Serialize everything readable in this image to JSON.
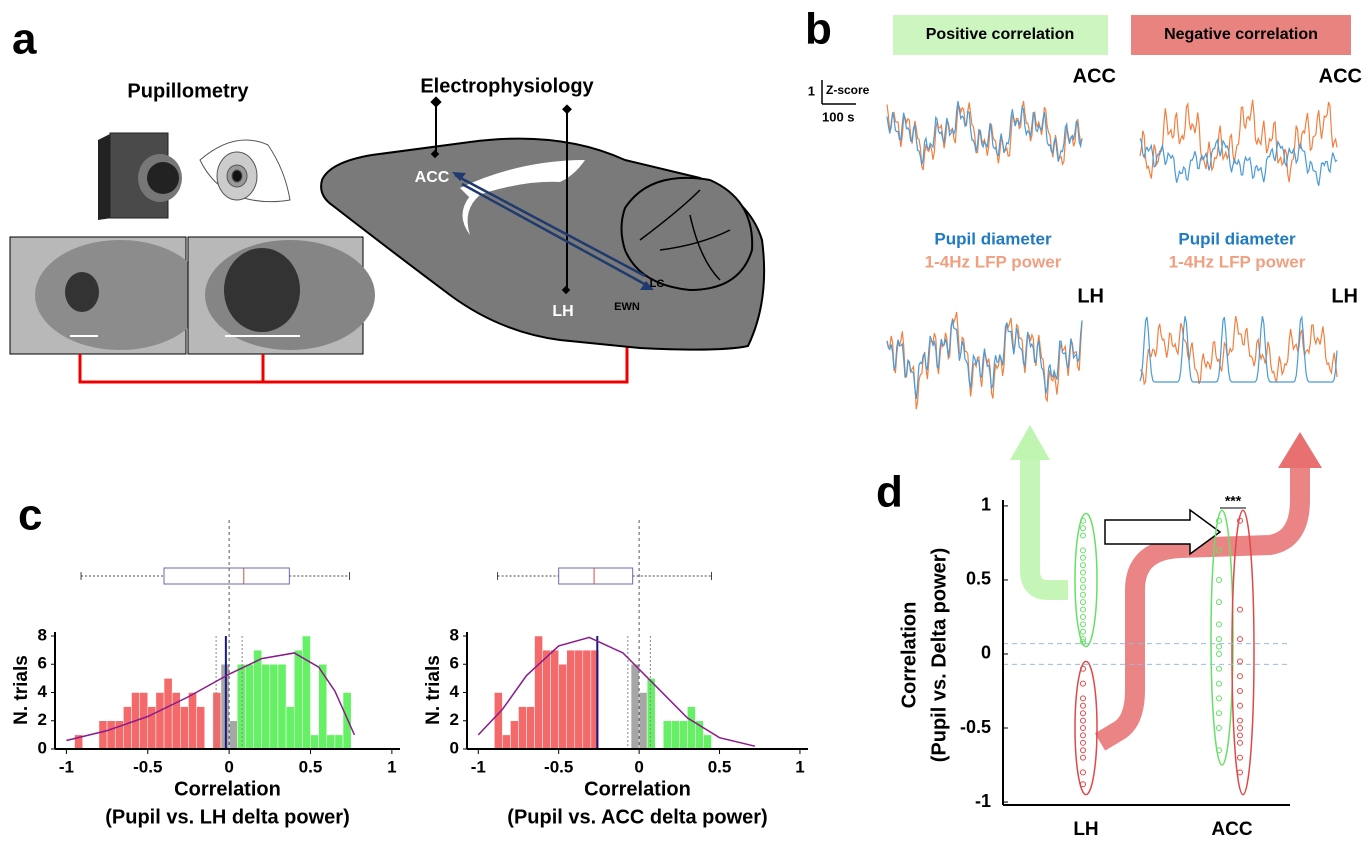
{
  "figure": {
    "panel_labels": [
      "a",
      "b",
      "c",
      "d"
    ],
    "a": {
      "pupillometry": "Pupillometry",
      "electrophysiology": "Electrophysiology",
      "regions": [
        "ACC",
        "LH",
        "LC",
        "EWN"
      ]
    },
    "b": {
      "positive": "Positive correlation",
      "negative": "Negative correlation",
      "scale_y": "1",
      "scale_y_unit": "Z-score",
      "scale_x": "100 s",
      "regions": [
        "ACC",
        "ACC",
        "LH",
        "LH"
      ],
      "legend": [
        "Pupil diameter",
        "1-4Hz LFP power",
        "Pupil diameter",
        "1-4Hz LFP power"
      ]
    }
  },
  "chart_data": [
    {
      "type": "histogram",
      "ylabel": "N. trials",
      "xlabel": "Correlation",
      "xlabel2": "(Pupil vs. LH delta power)",
      "xlim": [
        -1.07,
        1.05
      ],
      "ylim": [
        0,
        8
      ],
      "xticks": [
        -1,
        -0.5,
        0,
        0.5,
        1
      ],
      "yticks": [
        0,
        2,
        4,
        6,
        8
      ],
      "bins": [
        -0.95,
        -0.9,
        -0.85,
        -0.8,
        -0.75,
        -0.7,
        -0.65,
        -0.6,
        -0.55,
        -0.5,
        -0.45,
        -0.4,
        -0.35,
        -0.3,
        -0.25,
        -0.2,
        -0.15,
        -0.1,
        -0.05,
        0,
        0.05,
        0.1,
        0.15,
        0.2,
        0.25,
        0.3,
        0.35,
        0.4,
        0.45,
        0.5,
        0.55,
        0.6,
        0.65,
        0.7,
        0.75
      ],
      "series": [
        {
          "color": "#f46a6a",
          "values": [
            1,
            0,
            0,
            2,
            2,
            2,
            3,
            4,
            4,
            3,
            4,
            5,
            4,
            3,
            4,
            3,
            0,
            4,
            null,
            null,
            null,
            null,
            null,
            null,
            null,
            null,
            null,
            null,
            null,
            null,
            null,
            null,
            null,
            null
          ]
        },
        {
          "color": "#a6a6a6",
          "values": [
            null,
            null,
            null,
            null,
            null,
            null,
            null,
            null,
            null,
            null,
            null,
            null,
            null,
            null,
            null,
            null,
            null,
            null,
            6,
            2,
            null,
            null,
            null,
            null,
            null,
            null,
            null,
            null,
            null,
            null,
            null,
            null,
            null,
            null
          ]
        },
        {
          "color": "#66f066",
          "values": [
            null,
            null,
            null,
            null,
            null,
            null,
            null,
            null,
            null,
            null,
            null,
            null,
            null,
            null,
            null,
            null,
            null,
            null,
            null,
            null,
            6,
            6,
            7,
            6,
            6,
            6,
            3,
            7,
            8,
            1,
            6,
            1,
            1,
            4
          ]
        }
      ],
      "mean": -0.02,
      "zero_line": 0,
      "thresholds": [
        -0.08,
        0.08
      ],
      "box": {
        "whisker_low": -0.91,
        "q1": -0.4,
        "median": 0.09,
        "q3": 0.37,
        "whisker_high": 0.74
      },
      "fit": {
        "color": "#8b1a8b",
        "x": [
          -1,
          -0.75,
          -0.5,
          -0.25,
          0,
          0.2,
          0.4,
          0.55,
          0.65,
          0.77
        ],
        "y": [
          0.6,
          1.3,
          2.3,
          3.7,
          5.3,
          6.4,
          6.8,
          5.8,
          4.1,
          1.0
        ]
      }
    },
    {
      "type": "histogram",
      "ylabel": "N. trials",
      "xlabel": "Correlation",
      "xlabel2": "(Pupil vs. ACC delta power)",
      "xlim": [
        -1.07,
        1.05
      ],
      "ylim": [
        0,
        8
      ],
      "xticks": [
        -1,
        -0.5,
        0,
        0.5,
        1
      ],
      "yticks": [
        0,
        2,
        4,
        6,
        8
      ],
      "bins": [
        -0.9,
        -0.85,
        -0.8,
        -0.75,
        -0.7,
        -0.65,
        -0.6,
        -0.55,
        -0.5,
        -0.45,
        -0.4,
        -0.35,
        -0.3,
        -0.25,
        -0.2,
        -0.15,
        -0.1,
        -0.05,
        0,
        0.05,
        0.1,
        0.15,
        0.2,
        0.25,
        0.3,
        0.35,
        0.4,
        0.45
      ],
      "series": [
        {
          "color": "#f46a6a",
          "values": [
            4,
            1,
            2,
            3,
            3,
            8,
            7,
            7,
            6,
            7,
            7,
            7,
            7,
            0,
            0,
            0,
            0,
            null,
            null,
            null,
            null,
            null,
            null,
            null,
            null,
            null,
            null
          ]
        },
        {
          "color": "#a6a6a6",
          "values": [
            null,
            null,
            null,
            null,
            null,
            null,
            null,
            null,
            null,
            null,
            null,
            null,
            null,
            null,
            null,
            null,
            null,
            6,
            4,
            null,
            null,
            null,
            null,
            null,
            null,
            null,
            null
          ]
        },
        {
          "color": "#66f066",
          "values": [
            null,
            null,
            null,
            null,
            null,
            null,
            null,
            null,
            null,
            null,
            null,
            null,
            null,
            null,
            null,
            null,
            null,
            null,
            null,
            5,
            0,
            2,
            2,
            2,
            3,
            2,
            1
          ]
        }
      ],
      "mean": -0.26,
      "zero_line": 0,
      "thresholds": [
        -0.07,
        0.07
      ],
      "box": {
        "whisker_low": -0.88,
        "q1": -0.5,
        "median": -0.28,
        "q3": -0.04,
        "whisker_high": 0.45
      },
      "fit": {
        "color": "#8b1a8b",
        "x": [
          -1,
          -0.85,
          -0.7,
          -0.5,
          -0.31,
          -0.1,
          0.1,
          0.3,
          0.5,
          0.72
        ],
        "y": [
          1.0,
          2.8,
          5.2,
          7.3,
          7.9,
          6.8,
          4.5,
          2.2,
          0.8,
          0.2
        ]
      }
    },
    {
      "type": "strip",
      "ylabel": "Correlation",
      "ylabel2": "(Pupil vs. Delta power)",
      "categories": [
        "LH",
        "ACC"
      ],
      "ylim": [
        -1.02,
        1.04
      ],
      "yticks": [
        -1,
        -0.5,
        0,
        0.5,
        1
      ],
      "thresholds": [
        0.07,
        -0.07
      ],
      "annotation": "***",
      "series": [
        {
          "color": "#66e066",
          "values": [
            0.9,
            0.85,
            0.8,
            0.7,
            0.65,
            0.6,
            0.55,
            0.5,
            0.45,
            0.4,
            0.35,
            0.3,
            0.25,
            0.2,
            0.15,
            0.1,
            0.08
          ]
        },
        {
          "color": "#e04848",
          "values": [
            -0.1,
            -0.2,
            -0.3,
            -0.35,
            -0.4,
            -0.45,
            -0.5,
            -0.55,
            -0.6,
            -0.65,
            -0.7,
            -0.8,
            -0.88
          ]
        },
        {
          "color": "#66e066",
          "values": [
            0.9,
            0.7,
            0.5,
            0.35,
            0.2,
            0.1,
            0.05,
            0,
            -0.1,
            -0.2,
            -0.3,
            -0.4,
            -0.5,
            -0.65
          ]
        },
        {
          "color": "#e04848",
          "values": [
            0.9,
            0.3,
            0.1,
            -0.05,
            -0.15,
            -0.25,
            -0.35,
            -0.45,
            -0.5,
            -0.55,
            -0.6,
            -0.7,
            -0.8
          ]
        }
      ]
    }
  ]
}
